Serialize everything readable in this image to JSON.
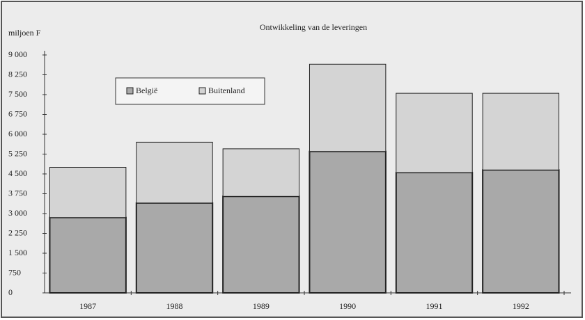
{
  "chart_data": {
    "type": "stacked_bar",
    "title": "Ontwikkeling van de leveringen",
    "y_label": "miljoen F",
    "categories": [
      "1987",
      "1988",
      "1989",
      "1990",
      "1991",
      "1992"
    ],
    "series": [
      {
        "name": "België",
        "color": "#a9a9a9",
        "values": [
          2850,
          3400,
          3650,
          5350,
          4550,
          4650
        ]
      },
      {
        "name": "Buitenland",
        "color": "#d4d4d4",
        "values": [
          1900,
          2300,
          1800,
          3300,
          3000,
          2900
        ]
      }
    ],
    "ylim": [
      0,
      9000
    ],
    "yticks": [
      0,
      750,
      {
        "value": 1500,
        "label": "1 500"
      },
      {
        "value": 2250,
        "label": "2 250"
      },
      {
        "value": 3000,
        "label": "3 000"
      },
      {
        "value": 3750,
        "label": "3 750"
      },
      {
        "value": 4500,
        "label": "4 500"
      },
      {
        "value": 5250,
        "label": "5 250"
      },
      {
        "value": 6000,
        "label": "6 000"
      },
      {
        "value": 6750,
        "label": "6 750"
      },
      {
        "value": 7500,
        "label": "7 500"
      },
      {
        "value": 8250,
        "label": "8 250"
      },
      {
        "value": 9000,
        "label": "9 000"
      }
    ]
  }
}
